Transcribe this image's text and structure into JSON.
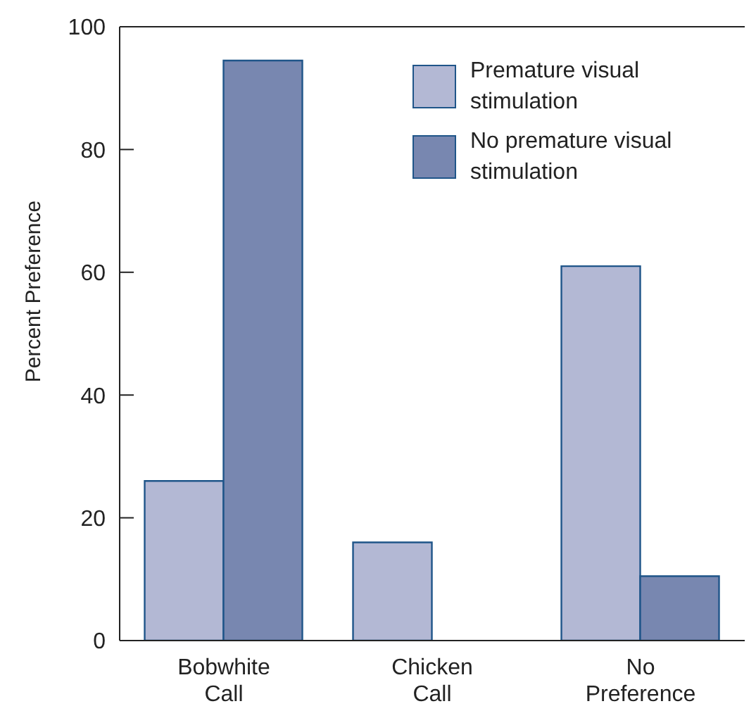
{
  "chart_data": {
    "type": "bar",
    "ylabel": "Percent Preference",
    "categories": [
      "Bobwhite\nCall",
      "Chicken\nCall",
      "No\nPreference"
    ],
    "series": [
      {
        "name": "Premature visual stimulation",
        "color": "#b3b8d4",
        "values": [
          26,
          16,
          61
        ]
      },
      {
        "name": "No premature visual stimulation",
        "color": "#7887b0",
        "values": [
          94.5,
          0,
          10.5
        ]
      }
    ],
    "ylim": [
      0,
      100
    ],
    "yticks": [
      0,
      20,
      40,
      60,
      80,
      100
    ],
    "grid": false,
    "legend": "top right"
  }
}
